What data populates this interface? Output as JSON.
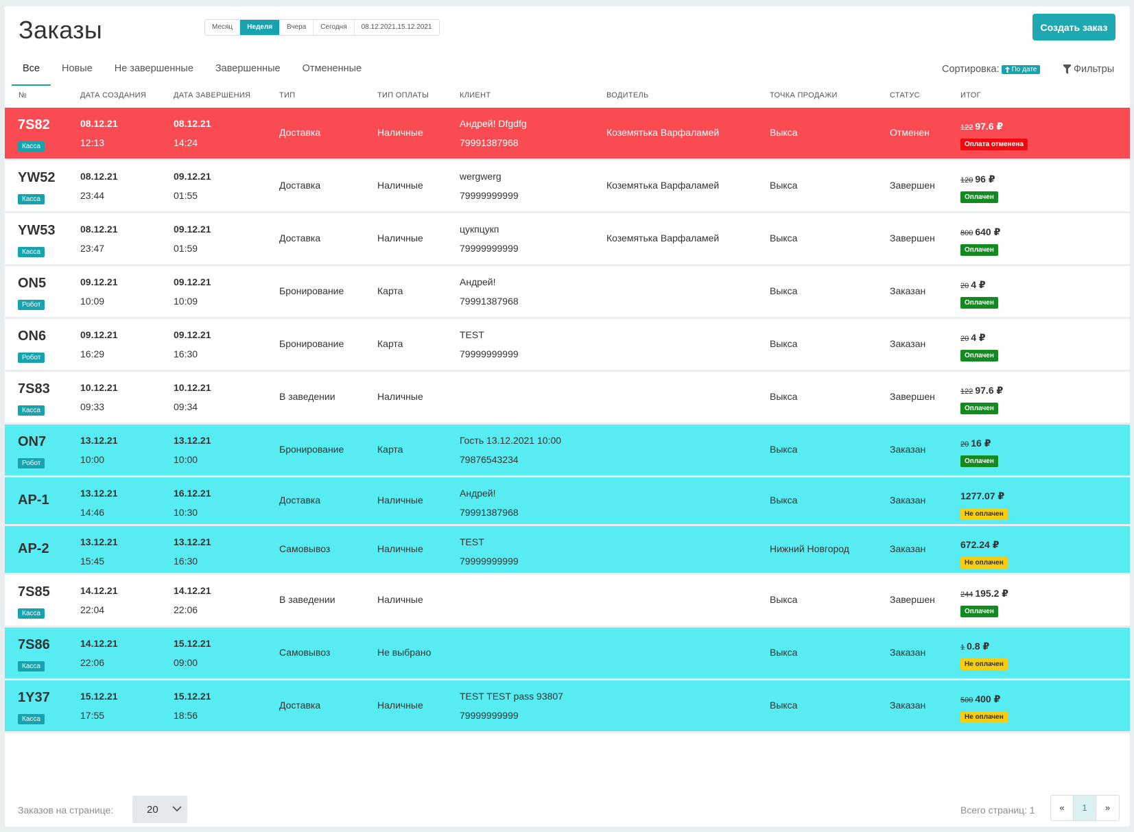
{
  "header": {
    "title": "Заказы",
    "create_button": "Создать заказ"
  },
  "period": {
    "options": [
      "Месяц",
      "Неделя",
      "Вчера",
      "Сегодня",
      "08.12.2021,15.12.2021"
    ],
    "active": "Неделя"
  },
  "tabs": {
    "items": [
      "Все",
      "Новые",
      "Не завершенные",
      "Завершенные",
      "Отмененные"
    ],
    "active": "Все"
  },
  "sort": {
    "label": "Сортировка:",
    "value": "По дате"
  },
  "filters": {
    "label": "Фильтры"
  },
  "columns": [
    "№",
    "Дата создания",
    "Дата завершения",
    "Тип",
    "Тип оплаты",
    "Клиент",
    "Водитель",
    "Точка продажи",
    "Статус",
    "Итог"
  ],
  "orders": [
    {
      "id": "7S82",
      "source": "Касса",
      "created_date": "08.12.21",
      "created_time": "12:13",
      "done_date": "08.12.21",
      "done_time": "14:24",
      "type": "Доставка",
      "payment": "Наличные",
      "client": "Андрей! Dfgdfg",
      "phone": "79991387968",
      "driver": "Коземятька Варфаламей",
      "point": "Выкса",
      "status": "Отменен",
      "price_old": "122",
      "price_new": "97.6 ₽",
      "pay_status": "Оплата отменена",
      "pay_kind": "cancelled",
      "row": "red"
    },
    {
      "id": "YW52",
      "source": "Касса",
      "created_date": "08.12.21",
      "created_time": "23:44",
      "done_date": "09.12.21",
      "done_time": "01:55",
      "type": "Доставка",
      "payment": "Наличные",
      "client": "wergwerg",
      "phone": "79999999999",
      "driver": "Коземятька Варфаламей",
      "point": "Выкса",
      "status": "Завершен",
      "price_old": "120",
      "price_new": "96 ₽",
      "pay_status": "Оплачен",
      "pay_kind": "paid",
      "row": "white"
    },
    {
      "id": "YW53",
      "source": "Касса",
      "created_date": "08.12.21",
      "created_time": "23:47",
      "done_date": "09.12.21",
      "done_time": "01:59",
      "type": "Доставка",
      "payment": "Наличные",
      "client": "цукпцукп",
      "phone": "79999999999",
      "driver": "Коземятька Варфаламей",
      "point": "Выкса",
      "status": "Завершен",
      "price_old": "800",
      "price_new": "640 ₽",
      "pay_status": "Оплачен",
      "pay_kind": "paid",
      "row": "white"
    },
    {
      "id": "ON5",
      "source": "Робот",
      "created_date": "09.12.21",
      "created_time": "10:09",
      "done_date": "09.12.21",
      "done_time": "10:09",
      "type": "Бронирование",
      "payment": "Карта",
      "client": "Андрей!",
      "phone": "79991387968",
      "driver": "",
      "point": "Выкса",
      "status": "Заказан",
      "price_old": "20",
      "price_new": "4 ₽",
      "pay_status": "Оплачен",
      "pay_kind": "paid",
      "row": "white"
    },
    {
      "id": "ON6",
      "source": "Робот",
      "created_date": "09.12.21",
      "created_time": "16:29",
      "done_date": "09.12.21",
      "done_time": "16:30",
      "type": "Бронирование",
      "payment": "Карта",
      "client": "TEST",
      "phone": "79999999999",
      "driver": "",
      "point": "Выкса",
      "status": "Заказан",
      "price_old": "20",
      "price_new": "4 ₽",
      "pay_status": "Оплачен",
      "pay_kind": "paid",
      "row": "white"
    },
    {
      "id": "7S83",
      "source": "Касса",
      "created_date": "10.12.21",
      "created_time": "09:33",
      "done_date": "10.12.21",
      "done_time": "09:34",
      "type": "В заведении",
      "payment": "Наличные",
      "client": "",
      "phone": "",
      "driver": "",
      "point": "Выкса",
      "status": "Завершен",
      "price_old": "122",
      "price_new": "97.6 ₽",
      "pay_status": "Оплачен",
      "pay_kind": "paid",
      "row": "white"
    },
    {
      "id": "ON7",
      "source": "Робот",
      "created_date": "13.12.21",
      "created_time": "10:00",
      "done_date": "13.12.21",
      "done_time": "10:00",
      "type": "Бронирование",
      "payment": "Карта",
      "client": "Гость 13.12.2021 10:00",
      "phone": "79876543234",
      "driver": "",
      "point": "Выкса",
      "status": "Заказан",
      "price_old": "20",
      "price_new": "16 ₽",
      "pay_status": "Оплачен",
      "pay_kind": "paid",
      "row": "cyan"
    },
    {
      "id": "AP-1",
      "source": "",
      "created_date": "13.12.21",
      "created_time": "14:46",
      "done_date": "16.12.21",
      "done_time": "10:30",
      "type": "Доставка",
      "payment": "Наличные",
      "client": "Андрей!",
      "phone": "79991387968",
      "driver": "",
      "point": "Выкса",
      "status": "Заказан",
      "price_old": "",
      "price_new": "1277.07 ₽",
      "pay_status": "Не оплачен",
      "pay_kind": "unpaid",
      "row": "cyan"
    },
    {
      "id": "AP-2",
      "source": "",
      "created_date": "13.12.21",
      "created_time": "15:45",
      "done_date": "13.12.21",
      "done_time": "16:30",
      "type": "Самовывоз",
      "payment": "Наличные",
      "client": "TEST",
      "phone": "79999999999",
      "driver": "",
      "point": "Нижний Новгород",
      "status": "Заказан",
      "price_old": "",
      "price_new": "672.24 ₽",
      "pay_status": "Не оплачен",
      "pay_kind": "unpaid",
      "row": "cyan"
    },
    {
      "id": "7S85",
      "source": "Касса",
      "created_date": "14.12.21",
      "created_time": "22:04",
      "done_date": "14.12.21",
      "done_time": "22:06",
      "type": "В заведении",
      "payment": "Наличные",
      "client": "",
      "phone": "",
      "driver": "",
      "point": "Выкса",
      "status": "Завершен",
      "price_old": "244",
      "price_new": "195.2 ₽",
      "pay_status": "Оплачен",
      "pay_kind": "paid",
      "row": "white"
    },
    {
      "id": "7S86",
      "source": "Касса",
      "created_date": "14.12.21",
      "created_time": "22:06",
      "done_date": "15.12.21",
      "done_time": "09:00",
      "type": "Самовывоз",
      "payment": "Не выбрано",
      "client": "",
      "phone": "",
      "driver": "",
      "point": "Выкса",
      "status": "Заказан",
      "price_old": "1",
      "price_new": "0.8 ₽",
      "pay_status": "Не оплачен",
      "pay_kind": "unpaid",
      "row": "cyan"
    },
    {
      "id": "1Y37",
      "source": "Касса",
      "created_date": "15.12.21",
      "created_time": "17:55",
      "done_date": "15.12.21",
      "done_time": "18:56",
      "type": "Доставка",
      "payment": "Наличные",
      "client": "TEST TEST pass 93807",
      "phone": "79999999999",
      "driver": "",
      "point": "Выкса",
      "status": "Заказан",
      "price_old": "500",
      "price_new": "400 ₽",
      "pay_status": "Не оплачен",
      "pay_kind": "unpaid",
      "row": "cyan"
    }
  ],
  "footer": {
    "per_page_label": "Заказов на странице:",
    "per_page_value": "20",
    "total_pages_label": "Всего страниц: 1",
    "pager": [
      "«",
      "1",
      "»"
    ],
    "current_page": "1"
  },
  "colors": {
    "accent": "#17a2ad",
    "row_cancelled": "#fb4b52",
    "row_highlight": "#56ecf2",
    "badge_paid": "#128a1f",
    "badge_unpaid": "#f7cd11",
    "badge_cancelled": "#ef0a10"
  }
}
